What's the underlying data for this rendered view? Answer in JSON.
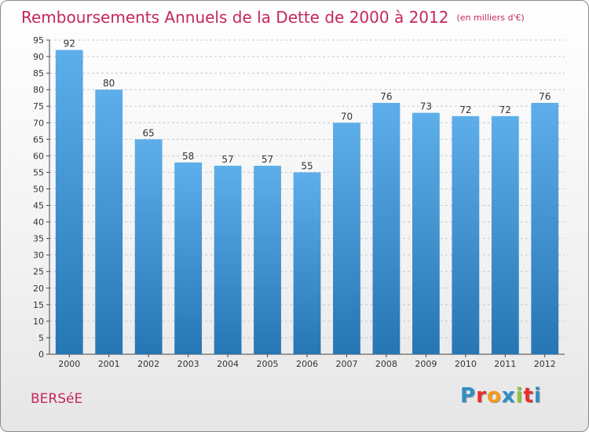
{
  "title": "Remboursements Annuels de la Dette de 2000 à 2012",
  "unit": "(en milliers d'€)",
  "location": "BERSéE",
  "logo": [
    "P",
    "r",
    "o",
    "x",
    "i",
    "t",
    "i"
  ],
  "logo_colors": [
    "#2f8fc8",
    "#e8312f",
    "#f59c1a",
    "#2f8fc8",
    "#8cc63f",
    "#e8312f",
    "#2f8fc8"
  ],
  "colors": {
    "bar_light": "#5daeea",
    "bar_dark": "#2676b4",
    "grid": "#c8c8c8",
    "axis": "#444444",
    "title": "#c4275d"
  },
  "chart_data": {
    "type": "bar",
    "title": "Remboursements Annuels de la Dette de 2000 à 2012",
    "categories": [
      "2000",
      "2001",
      "2002",
      "2003",
      "2004",
      "2005",
      "2006",
      "2007",
      "2008",
      "2009",
      "2010",
      "2011",
      "2012"
    ],
    "values": [
      92,
      80,
      65,
      58,
      57,
      57,
      55,
      70,
      76,
      73,
      72,
      72,
      76
    ],
    "ylim": [
      0,
      95
    ],
    "yticks": [
      0,
      5,
      10,
      15,
      20,
      25,
      30,
      35,
      40,
      45,
      50,
      55,
      60,
      65,
      70,
      75,
      80,
      85,
      90,
      95
    ],
    "grid": true,
    "xlabel": "",
    "ylabel": ""
  }
}
